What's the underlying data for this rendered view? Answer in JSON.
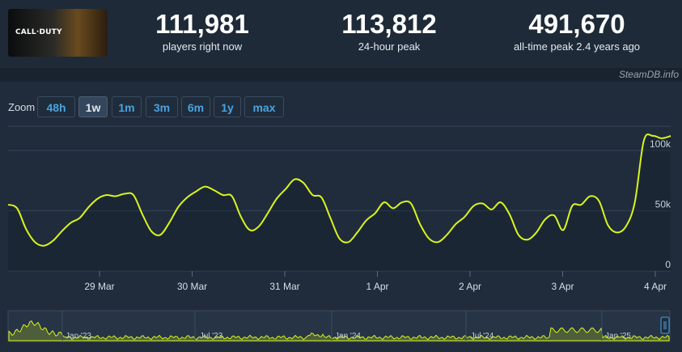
{
  "game": {
    "logo_text": "CALL·DUTY"
  },
  "stats": [
    {
      "value": "111,981",
      "label": "players right now"
    },
    {
      "value": "113,812",
      "label": "24-hour peak"
    },
    {
      "value": "491,670",
      "label": "all-time peak 2.4 years ago"
    }
  ],
  "watermark": "SteamDB.info",
  "zoom": {
    "label": "Zoom",
    "buttons": [
      "48h",
      "1w",
      "1m",
      "3m",
      "6m",
      "1y",
      "max"
    ],
    "active": "1w"
  },
  "colors": {
    "line": "#d9f51d",
    "accent": "#4aa3df",
    "background": "#1b2838"
  },
  "chart_data": {
    "type": "line",
    "x_tick_labels": [
      "29 Mar",
      "30 Mar",
      "31 Mar",
      "1 Apr",
      "2 Apr",
      "3 Apr",
      "4 Apr"
    ],
    "y_tick_labels": [
      "0",
      "50k",
      "100k"
    ],
    "ylim": [
      0,
      120000
    ],
    "grid": true,
    "series": [
      {
        "values": [
          55000,
          52000,
          35000,
          24000,
          21000,
          25000,
          33000,
          40000,
          44000,
          53000,
          60000,
          63000,
          62000,
          64000,
          63000,
          47000,
          33000,
          30000,
          40000,
          53000,
          61000,
          66000,
          70000,
          67000,
          63000,
          62000,
          45000,
          34000,
          37000,
          48000,
          60000,
          68000,
          76000,
          73000,
          63000,
          61000,
          44000,
          27000,
          24000,
          32000,
          42000,
          48000,
          57000,
          52000,
          57000,
          56000,
          39000,
          27000,
          24000,
          30000,
          39000,
          45000,
          54000,
          56000,
          51000,
          57000,
          47000,
          30000,
          26000,
          32000,
          43000,
          46000,
          34000,
          54000,
          55000,
          62000,
          58000,
          38000,
          32000,
          37000,
          57000,
          108000,
          112000,
          110000,
          111981
        ]
      }
    ],
    "navigator": {
      "x_tick_labels": [
        "Jan '23",
        "Jul '23",
        "Jan '24",
        "Jul '24",
        "Jan '25"
      ]
    }
  }
}
